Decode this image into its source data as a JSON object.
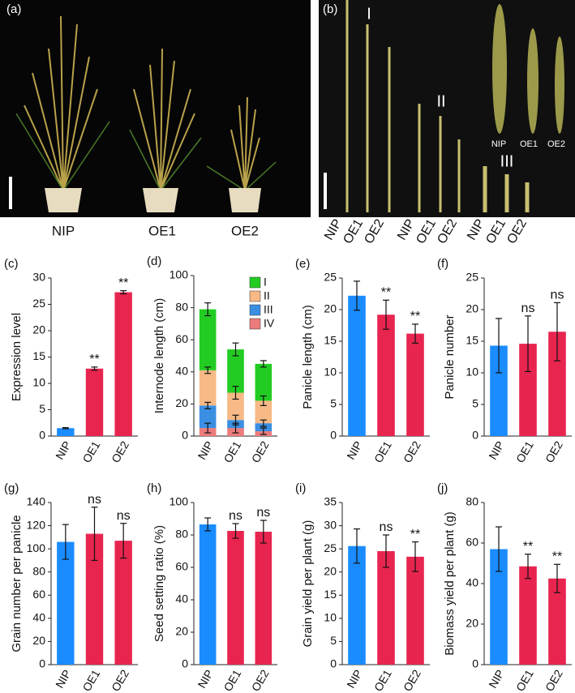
{
  "photos": {
    "a": {
      "panel": "(a)",
      "labels": [
        "NIP",
        "OE1",
        "OE2"
      ]
    },
    "b": {
      "panel": "(b)",
      "internodes": [
        "I",
        "II",
        "III"
      ],
      "panicles": [
        "NIP",
        "OE1",
        "OE2"
      ],
      "labels": [
        "NIP",
        "OE1",
        "OE2",
        "NIP",
        "OE1",
        "OE2",
        "NIP",
        "OE1",
        "OE2"
      ]
    }
  },
  "chart_data": [
    {
      "type": "bar",
      "panel": "(c)",
      "ylabel": "Expression level",
      "categories": [
        "NIP",
        "OE1",
        "OE2"
      ],
      "values": [
        1.5,
        12.8,
        27.3
      ],
      "errors": [
        0.1,
        0.3,
        0.3
      ],
      "annotations": [
        null,
        "**",
        "**"
      ],
      "colors": [
        "#1a8cff",
        "#e8254f",
        "#e8254f"
      ],
      "ylim": [
        0,
        30
      ],
      "yticks": [
        0,
        5,
        10,
        15,
        20,
        25,
        30
      ]
    },
    {
      "type": "stacked_bar",
      "panel": "(d)",
      "ylabel": "Internode length (cm)",
      "categories": [
        "NIP",
        "OE1",
        "OE2"
      ],
      "series": [
        {
          "name": "IV",
          "color": "#ec7b7b",
          "values": [
            5,
            5,
            3
          ],
          "errors": [
            3,
            3,
            2
          ]
        },
        {
          "name": "III",
          "color": "#3b8fe3",
          "values": [
            14,
            5,
            5
          ],
          "errors": [
            2,
            3,
            2
          ]
        },
        {
          "name": "II",
          "color": "#f7b985",
          "values": [
            22,
            17,
            14
          ],
          "errors": [
            2,
            4,
            3
          ]
        },
        {
          "name": "I",
          "color": "#22cc22",
          "values": [
            38,
            27,
            23
          ],
          "errors": [
            4,
            4,
            2
          ]
        }
      ],
      "ylim": [
        0,
        100
      ],
      "yticks": [
        0,
        20,
        40,
        60,
        80,
        100
      ]
    },
    {
      "type": "bar",
      "panel": "(e)",
      "ylabel": "Panicle length (cm)",
      "categories": [
        "NIP",
        "OE1",
        "OE2"
      ],
      "values": [
        22.2,
        19.2,
        16.2
      ],
      "errors": [
        2.3,
        2.3,
        1.5
      ],
      "annotations": [
        null,
        "**",
        "**"
      ],
      "colors": [
        "#1a8cff",
        "#e8254f",
        "#e8254f"
      ],
      "ylim": [
        0,
        25
      ],
      "yticks": [
        0,
        5,
        10,
        15,
        20,
        25
      ]
    },
    {
      "type": "bar",
      "panel": "(f)",
      "ylabel": "Panicle number",
      "categories": [
        "NIP",
        "OE1",
        "OE2"
      ],
      "values": [
        14.3,
        14.6,
        16.5
      ],
      "errors": [
        4.3,
        4.4,
        4.6
      ],
      "annotations": [
        null,
        "ns",
        "ns"
      ],
      "colors": [
        "#1a8cff",
        "#e8254f",
        "#e8254f"
      ],
      "ylim": [
        0,
        25
      ],
      "yticks": [
        0,
        5,
        10,
        15,
        20,
        25
      ]
    },
    {
      "type": "bar",
      "panel": "(g)",
      "ylabel": "Grain number per panicle",
      "categories": [
        "NIP",
        "OE1",
        "OE2"
      ],
      "values": [
        106,
        113,
        107
      ],
      "errors": [
        15,
        23,
        15
      ],
      "annotations": [
        null,
        "ns",
        "ns"
      ],
      "colors": [
        "#1a8cff",
        "#e8254f",
        "#e8254f"
      ],
      "ylim": [
        0,
        140
      ],
      "yticks": [
        0,
        20,
        40,
        60,
        80,
        100,
        120,
        140
      ]
    },
    {
      "type": "bar",
      "panel": "(h)",
      "ylabel": "Seed setting ratio (%)",
      "categories": [
        "NIP",
        "OE1",
        "OE2"
      ],
      "values": [
        86.5,
        82.5,
        82
      ],
      "errors": [
        4,
        4.5,
        7
      ],
      "annotations": [
        null,
        "ns",
        "ns"
      ],
      "colors": [
        "#1a8cff",
        "#e8254f",
        "#e8254f"
      ],
      "ylim": [
        0,
        100
      ],
      "yticks": [
        0,
        20,
        40,
        60,
        80,
        100
      ]
    },
    {
      "type": "bar",
      "panel": "(i)",
      "ylabel": "Grain yield per plant (g)",
      "categories": [
        "NIP",
        "OE1",
        "OE2"
      ],
      "values": [
        25.6,
        24.5,
        23.3
      ],
      "errors": [
        3.7,
        3.5,
        3.2
      ],
      "annotations": [
        null,
        "ns",
        "**"
      ],
      "colors": [
        "#1a8cff",
        "#e8254f",
        "#e8254f"
      ],
      "ylim": [
        0,
        35
      ],
      "yticks": [
        0,
        5,
        10,
        15,
        20,
        25,
        30,
        35
      ]
    },
    {
      "type": "bar",
      "panel": "(j)",
      "ylabel": "Biomass yield per plant (g)",
      "categories": [
        "NIP",
        "OE1",
        "OE2"
      ],
      "values": [
        57,
        48.5,
        42.5
      ],
      "errors": [
        11,
        6,
        7
      ],
      "annotations": [
        null,
        "**",
        "**"
      ],
      "colors": [
        "#1a8cff",
        "#e8254f",
        "#e8254f"
      ],
      "ylim": [
        0,
        80
      ],
      "yticks": [
        0,
        20,
        40,
        60,
        80
      ]
    }
  ]
}
